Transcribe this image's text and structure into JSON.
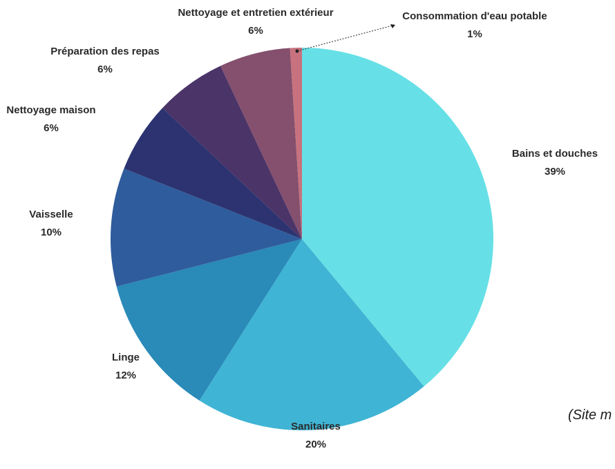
{
  "chart_data": {
    "type": "pie",
    "slices": [
      {
        "label": "Bains et douches",
        "value": 39,
        "pct": "39%",
        "color": "#66e0e6"
      },
      {
        "label": "Sanitaires",
        "value": 20,
        "pct": "20%",
        "color": "#3fb4d4"
      },
      {
        "label": "Linge",
        "value": 12,
        "pct": "12%",
        "color": "#2a8ab8"
      },
      {
        "label": "Vaisselle",
        "value": 10,
        "pct": "10%",
        "color": "#2f5c9c"
      },
      {
        "label": "Nettoyage maison",
        "value": 6,
        "pct": "6%",
        "color": "#2c3370"
      },
      {
        "label": "Préparation des repas",
        "value": 6,
        "pct": "6%",
        "color": "#4b3468"
      },
      {
        "label": "Nettoyage et entretien extérieur",
        "value": 6,
        "pct": "6%",
        "color": "#84506e"
      },
      {
        "label": "Consommation d'eau potable",
        "value": 1,
        "pct": "1%",
        "color": "#c7727e"
      }
    ],
    "start_at": "12 o'clock",
    "direction": "clockwise",
    "legend": "none",
    "leader_line_for": "Consommation d'eau potable"
  },
  "source_note": "(Site m"
}
